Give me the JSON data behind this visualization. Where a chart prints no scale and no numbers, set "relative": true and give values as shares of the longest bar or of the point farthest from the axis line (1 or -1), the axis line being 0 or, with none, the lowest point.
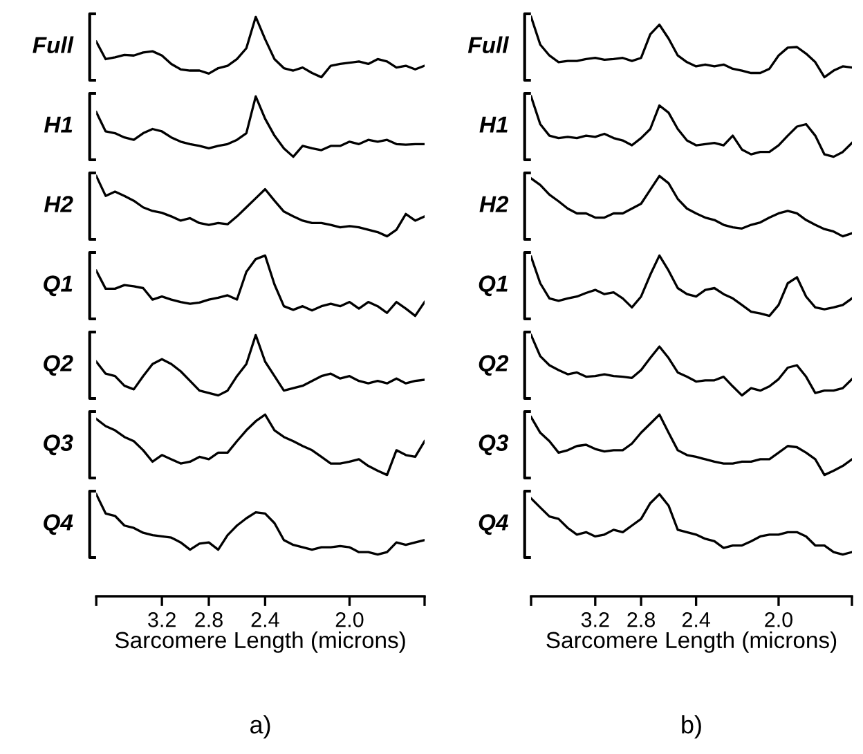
{
  "chart_data": [
    {
      "type": "line",
      "ylabel": "Full",
      "relative": true,
      "tick_labels": false,
      "categories": [
        null,
        null,
        null,
        null,
        null,
        null,
        null,
        "3.2",
        null,
        null,
        null,
        null,
        "2.8",
        null,
        null,
        null,
        null,
        null,
        "2.4",
        null,
        null,
        null,
        null,
        null,
        null,
        null,
        null,
        "2.0",
        null,
        null,
        null,
        null,
        null,
        null,
        null,
        null
      ],
      "series": [
        {
          "color": "#000000",
          "values": [
            0.59,
            0.3,
            0.33,
            0.37,
            0.36,
            0.41,
            0.43,
            0.36,
            0.22,
            0.13,
            0.11,
            0.11,
            0.06,
            0.15,
            0.19,
            0.3,
            0.48,
            1,
            0.63,
            0.3,
            0.15,
            0.11,
            0.16,
            0.07,
            0,
            0.19,
            0.22,
            0.24,
            0.26,
            0.22,
            0.3,
            0.26,
            0.16,
            0.19,
            0.13,
            0.19
          ]
        }
      ]
    },
    {
      "type": "line",
      "ylabel": "H1",
      "relative": true,
      "tick_labels": false,
      "categories": [
        null,
        null,
        null,
        null,
        null,
        null,
        null,
        "3.2",
        null,
        null,
        null,
        null,
        "2.8",
        null,
        null,
        null,
        null,
        null,
        "2.4",
        null,
        null,
        null,
        null,
        null,
        null,
        null,
        null,
        "2.0",
        null,
        null,
        null,
        null,
        null,
        null,
        null,
        null
      ],
      "series": [
        {
          "color": "#000000",
          "values": [
            0.74,
            0.42,
            0.39,
            0.32,
            0.28,
            0.39,
            0.46,
            0.42,
            0.32,
            0.25,
            0.21,
            0.18,
            0.14,
            0.18,
            0.21,
            0.28,
            0.39,
            1,
            0.63,
            0.35,
            0.14,
            0,
            0.18,
            0.14,
            0.11,
            0.18,
            0.18,
            0.25,
            0.21,
            0.28,
            0.25,
            0.28,
            0.21,
            0.2,
            0.21,
            0.21
          ]
        }
      ]
    },
    {
      "type": "line",
      "ylabel": "H2",
      "relative": true,
      "tick_labels": false,
      "categories": [
        null,
        null,
        null,
        null,
        null,
        null,
        null,
        "3.2",
        null,
        null,
        null,
        null,
        "2.8",
        null,
        null,
        null,
        null,
        null,
        "2.4",
        null,
        null,
        null,
        null,
        null,
        null,
        null,
        null,
        "2.0",
        null,
        null,
        null,
        null,
        null,
        null,
        null,
        null
      ],
      "series": [
        {
          "color": "#000000",
          "values": [
            1,
            0.67,
            0.74,
            0.67,
            0.59,
            0.48,
            0.42,
            0.39,
            0.33,
            0.26,
            0.3,
            0.22,
            0.19,
            0.22,
            0.2,
            0.33,
            0.48,
            0.63,
            0.78,
            0.59,
            0.41,
            0.33,
            0.26,
            0.22,
            0.22,
            0.19,
            0.15,
            0.17,
            0.15,
            0.11,
            0.07,
            0,
            0.11,
            0.37,
            0.26,
            0.33
          ]
        }
      ]
    },
    {
      "type": "line",
      "ylabel": "Q1",
      "relative": true,
      "tick_labels": false,
      "categories": [
        null,
        null,
        null,
        null,
        null,
        null,
        null,
        "3.2",
        null,
        null,
        null,
        null,
        "2.8",
        null,
        null,
        null,
        null,
        null,
        "2.4",
        null,
        null,
        null,
        null,
        null,
        null,
        null,
        null,
        "2.0",
        null,
        null,
        null,
        null,
        null,
        null,
        null,
        null
      ],
      "series": [
        {
          "color": "#000000",
          "values": [
            0.75,
            0.45,
            0.45,
            0.51,
            0.49,
            0.46,
            0.27,
            0.32,
            0.27,
            0.23,
            0.2,
            0.22,
            0.27,
            0.3,
            0.34,
            0.27,
            0.73,
            0.94,
            1,
            0.52,
            0.16,
            0.1,
            0.16,
            0.09,
            0.16,
            0.2,
            0.16,
            0.23,
            0.12,
            0.23,
            0.16,
            0.05,
            0.23,
            0.12,
            0,
            0.23
          ]
        }
      ]
    },
    {
      "type": "line",
      "ylabel": "Q2",
      "relative": true,
      "tick_labels": false,
      "categories": [
        null,
        null,
        null,
        null,
        null,
        null,
        null,
        "3.2",
        null,
        null,
        null,
        null,
        "2.8",
        null,
        null,
        null,
        null,
        null,
        "2.4",
        null,
        null,
        null,
        null,
        null,
        null,
        null,
        null,
        "2.0",
        null,
        null,
        null,
        null,
        null,
        null,
        null,
        null
      ],
      "series": [
        {
          "color": "#000000",
          "values": [
            0.56,
            0.36,
            0.32,
            0.16,
            0.1,
            0.32,
            0.52,
            0.6,
            0.52,
            0.4,
            0.24,
            0.08,
            0.04,
            0,
            0.08,
            0.32,
            0.52,
            1,
            0.56,
            0.32,
            0.08,
            0.12,
            0.16,
            0.24,
            0.32,
            0.36,
            0.28,
            0.32,
            0.24,
            0.2,
            0.24,
            0.2,
            0.28,
            0.2,
            0.24,
            0.26
          ]
        }
      ]
    },
    {
      "type": "line",
      "ylabel": "Q3",
      "relative": true,
      "tick_labels": false,
      "categories": [
        null,
        null,
        null,
        null,
        null,
        null,
        null,
        "3.2",
        null,
        null,
        null,
        null,
        "2.8",
        null,
        null,
        null,
        null,
        null,
        "2.4",
        null,
        null,
        null,
        null,
        null,
        null,
        null,
        null,
        "2.0",
        null,
        null,
        null,
        null,
        null,
        null,
        null,
        null
      ],
      "series": [
        {
          "color": "#000000",
          "values": [
            0.93,
            0.81,
            0.74,
            0.63,
            0.56,
            0.41,
            0.22,
            0.33,
            0.26,
            0.19,
            0.22,
            0.3,
            0.26,
            0.37,
            0.37,
            0.56,
            0.74,
            0.89,
            1,
            0.74,
            0.63,
            0.56,
            0.48,
            0.41,
            0.3,
            0.19,
            0.19,
            0.22,
            0.26,
            0.15,
            0.07,
            0,
            0.41,
            0.33,
            0.3,
            0.56
          ]
        }
      ]
    },
    {
      "type": "line",
      "ylabel": "Q4",
      "xlabel": "Sarcomere Length (microns)",
      "annotations": [
        "a)"
      ],
      "relative": true,
      "tick_labels": "x",
      "categories": [
        null,
        null,
        null,
        null,
        null,
        null,
        null,
        "3.2",
        null,
        null,
        null,
        null,
        "2.8",
        null,
        null,
        null,
        null,
        null,
        "2.4",
        null,
        null,
        null,
        null,
        null,
        null,
        null,
        null,
        "2.0",
        null,
        null,
        null,
        null,
        null,
        null,
        null,
        null
      ],
      "series": [
        {
          "color": "#000000",
          "values": [
            1,
            0.68,
            0.64,
            0.48,
            0.44,
            0.36,
            0.32,
            0.3,
            0.28,
            0.2,
            0.08,
            0.18,
            0.2,
            0.08,
            0.32,
            0.48,
            0.6,
            0.7,
            0.68,
            0.52,
            0.24,
            0.16,
            0.12,
            0.08,
            0.12,
            0.12,
            0.14,
            0.12,
            0.04,
            0.04,
            0,
            0.04,
            0.2,
            0.16,
            0.2,
            0.24
          ]
        }
      ]
    },
    {
      "type": "line",
      "ylabel": "Full",
      "relative": true,
      "tick_labels": false,
      "categories": [
        null,
        null,
        null,
        null,
        null,
        null,
        null,
        "3.2",
        null,
        null,
        null,
        null,
        "2.8",
        null,
        null,
        null,
        null,
        null,
        "2.4",
        null,
        null,
        null,
        null,
        null,
        null,
        null,
        null,
        "2.0",
        null,
        null,
        null,
        null,
        null,
        null,
        null,
        null
      ],
      "series": [
        {
          "color": "#000000",
          "values": [
            1,
            0.54,
            0.36,
            0.25,
            0.27,
            0.27,
            0.3,
            0.32,
            0.29,
            0.3,
            0.32,
            0.27,
            0.32,
            0.71,
            0.87,
            0.64,
            0.36,
            0.25,
            0.18,
            0.21,
            0.18,
            0.21,
            0.14,
            0.11,
            0.07,
            0.07,
            0.14,
            0.36,
            0.49,
            0.5,
            0.39,
            0.25,
            0,
            0.11,
            0.18,
            0.16
          ]
        }
      ]
    },
    {
      "type": "line",
      "ylabel": "H1",
      "relative": true,
      "tick_labels": false,
      "categories": [
        null,
        null,
        null,
        null,
        null,
        null,
        null,
        "3.2",
        null,
        null,
        null,
        null,
        "2.8",
        null,
        null,
        null,
        null,
        null,
        "2.4",
        null,
        null,
        null,
        null,
        null,
        null,
        null,
        null,
        "2.0",
        null,
        null,
        null,
        null,
        null,
        null,
        null,
        null
      ],
      "series": [
        {
          "color": "#000000",
          "values": [
            1,
            0.54,
            0.35,
            0.31,
            0.33,
            0.31,
            0.35,
            0.33,
            0.38,
            0.31,
            0.27,
            0.19,
            0.31,
            0.46,
            0.85,
            0.73,
            0.46,
            0.27,
            0.19,
            0.21,
            0.23,
            0.19,
            0.35,
            0.12,
            0.04,
            0.08,
            0.08,
            0.19,
            0.35,
            0.5,
            0.54,
            0.35,
            0.04,
            0,
            0.08,
            0.23
          ]
        }
      ]
    },
    {
      "type": "line",
      "ylabel": "H2",
      "relative": true,
      "tick_labels": false,
      "categories": [
        null,
        null,
        null,
        null,
        null,
        null,
        null,
        "3.2",
        null,
        null,
        null,
        null,
        "2.8",
        null,
        null,
        null,
        null,
        null,
        "2.4",
        null,
        null,
        null,
        null,
        null,
        null,
        null,
        null,
        "2.0",
        null,
        null,
        null,
        null,
        null,
        null,
        null,
        null
      ],
      "series": [
        {
          "color": "#000000",
          "values": [
            0.96,
            0.85,
            0.69,
            0.58,
            0.46,
            0.38,
            0.38,
            0.31,
            0.31,
            0.38,
            0.38,
            0.46,
            0.54,
            0.77,
            1,
            0.88,
            0.62,
            0.46,
            0.38,
            0.31,
            0.27,
            0.19,
            0.15,
            0.13,
            0.19,
            0.23,
            0.31,
            0.38,
            0.42,
            0.38,
            0.27,
            0.19,
            0.12,
            0.08,
            0,
            0.05
          ]
        }
      ]
    },
    {
      "type": "line",
      "ylabel": "Q1",
      "relative": true,
      "tick_labels": false,
      "categories": [
        null,
        null,
        null,
        null,
        null,
        null,
        null,
        "3.2",
        null,
        null,
        null,
        null,
        "2.8",
        null,
        null,
        null,
        null,
        null,
        "2.4",
        null,
        null,
        null,
        null,
        null,
        null,
        null,
        null,
        "2.0",
        null,
        null,
        null,
        null,
        null,
        null,
        null,
        null
      ],
      "series": [
        {
          "color": "#000000",
          "values": [
            0.98,
            0.54,
            0.29,
            0.25,
            0.29,
            0.32,
            0.38,
            0.43,
            0.36,
            0.39,
            0.29,
            0.14,
            0.32,
            0.68,
            1,
            0.75,
            0.46,
            0.36,
            0.32,
            0.43,
            0.46,
            0.36,
            0.29,
            0.18,
            0.07,
            0.04,
            0,
            0.18,
            0.54,
            0.64,
            0.32,
            0.14,
            0.11,
            0.14,
            0.18,
            0.29
          ]
        }
      ]
    },
    {
      "type": "line",
      "ylabel": "Q2",
      "relative": true,
      "tick_labels": false,
      "categories": [
        null,
        null,
        null,
        null,
        null,
        null,
        null,
        "3.2",
        null,
        null,
        null,
        null,
        "2.8",
        null,
        null,
        null,
        null,
        null,
        "2.4",
        null,
        null,
        null,
        null,
        null,
        null,
        null,
        null,
        "2.0",
        null,
        null,
        null,
        null,
        null,
        null,
        null,
        null
      ],
      "series": [
        {
          "color": "#000000",
          "values": [
            1,
            0.65,
            0.5,
            0.42,
            0.35,
            0.38,
            0.31,
            0.32,
            0.35,
            0.32,
            0.31,
            0.29,
            0.42,
            0.62,
            0.81,
            0.62,
            0.38,
            0.31,
            0.23,
            0.25,
            0.25,
            0.31,
            0.15,
            0,
            0.12,
            0.08,
            0.15,
            0.27,
            0.46,
            0.5,
            0.31,
            0.04,
            0.08,
            0.08,
            0.12,
            0.27
          ]
        }
      ]
    },
    {
      "type": "line",
      "ylabel": "Q3",
      "relative": true,
      "tick_labels": false,
      "categories": [
        null,
        null,
        null,
        null,
        null,
        null,
        null,
        "3.2",
        null,
        null,
        null,
        null,
        "2.8",
        null,
        null,
        null,
        null,
        null,
        "2.4",
        null,
        null,
        null,
        null,
        null,
        null,
        null,
        null,
        "2.0",
        null,
        null,
        null,
        null,
        null,
        null,
        null,
        null
      ],
      "series": [
        {
          "color": "#000000",
          "values": [
            0.96,
            0.7,
            0.56,
            0.37,
            0.41,
            0.48,
            0.5,
            0.43,
            0.39,
            0.41,
            0.41,
            0.52,
            0.7,
            0.85,
            1,
            0.7,
            0.41,
            0.33,
            0.3,
            0.26,
            0.22,
            0.19,
            0.19,
            0.22,
            0.22,
            0.26,
            0.26,
            0.37,
            0.48,
            0.46,
            0.37,
            0.26,
            0,
            0.07,
            0.15,
            0.26
          ]
        }
      ]
    },
    {
      "type": "line",
      "ylabel": "Q4",
      "xlabel": "Sarcomere Length (microns)",
      "annotations": [
        "b)"
      ],
      "relative": true,
      "tick_labels": "x",
      "categories": [
        null,
        null,
        null,
        null,
        null,
        null,
        null,
        "3.2",
        null,
        null,
        null,
        null,
        "2.8",
        null,
        null,
        null,
        null,
        null,
        "2.4",
        null,
        null,
        null,
        null,
        null,
        null,
        null,
        null,
        "2.0",
        null,
        null,
        null,
        null,
        null,
        null,
        null,
        null
      ],
      "series": [
        {
          "color": "#000000",
          "values": [
            0.93,
            0.78,
            0.63,
            0.59,
            0.44,
            0.33,
            0.37,
            0.3,
            0.33,
            0.41,
            0.37,
            0.48,
            0.59,
            0.85,
            1,
            0.81,
            0.41,
            0.37,
            0.33,
            0.26,
            0.22,
            0.11,
            0.15,
            0.15,
            0.22,
            0.3,
            0.33,
            0.33,
            0.37,
            0.37,
            0.3,
            0.15,
            0.15,
            0.04,
            0,
            0.04
          ]
        }
      ]
    }
  ]
}
